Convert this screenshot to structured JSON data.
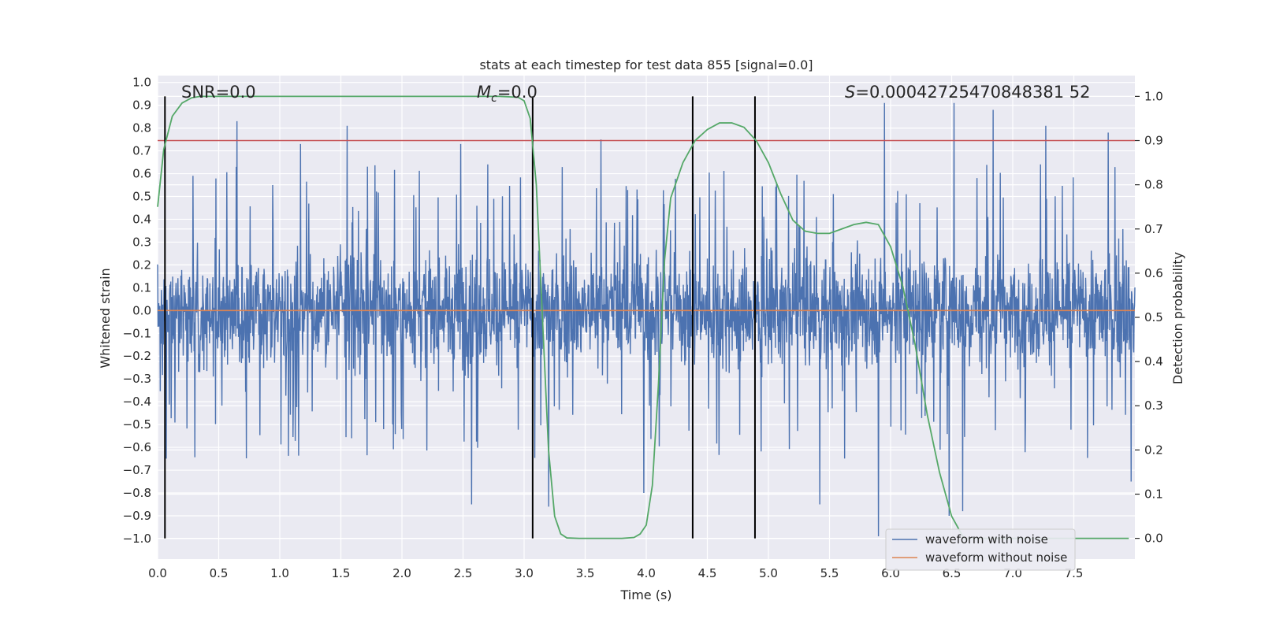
{
  "chart_data": {
    "type": "line",
    "title": "stats at each timestep for test data 855 [signal=0.0]",
    "xlabel": "Time (s)",
    "ylabel": "Whitened strain",
    "y2label": "Detection probability",
    "xlim": [
      0.0,
      8.0
    ],
    "ylim": [
      -1.09,
      1.03
    ],
    "y2lim": [
      -0.047,
      1.047
    ],
    "xticks": [
      0.0,
      0.5,
      1.0,
      1.5,
      2.0,
      2.5,
      3.0,
      3.5,
      4.0,
      4.5,
      5.0,
      5.5,
      6.0,
      6.5,
      7.0,
      7.5
    ],
    "xtick_labels": [
      "0.0",
      "0.5",
      "1.0",
      "1.5",
      "2.0",
      "2.5",
      "3.0",
      "3.5",
      "4.0",
      "4.5",
      "5.0",
      "5.5",
      "6.0",
      "6.5",
      "7.0",
      "7.5"
    ],
    "yticks": [
      1.0,
      0.9,
      0.8,
      0.7,
      0.6,
      0.5,
      0.4,
      0.3,
      0.2,
      0.1,
      0.0,
      -0.1,
      -0.2,
      -0.3,
      -0.4,
      -0.5,
      -0.6,
      -0.7,
      -0.8,
      -0.9,
      -1.0
    ],
    "ytick_labels": [
      "1.0",
      "0.9",
      "0.8",
      "0.7",
      "0.6",
      "0.5",
      "0.4",
      "0.3",
      "0.2",
      "0.1",
      "0.0",
      "−0.1",
      "−0.2",
      "−0.3",
      "−0.4",
      "−0.5",
      "−0.6",
      "−0.7",
      "−0.8",
      "−0.9",
      "−1.0"
    ],
    "y2ticks": [
      1.0,
      0.9,
      0.8,
      0.7,
      0.6,
      0.5,
      0.4,
      0.3,
      0.2,
      0.1,
      0.0
    ],
    "y2tick_labels": [
      "1.0",
      "0.9",
      "0.8",
      "0.7",
      "0.6",
      "0.5",
      "0.4",
      "0.3",
      "0.2",
      "0.1",
      "0.0"
    ],
    "grid": true,
    "annotations": {
      "snr": "SNR=0.0",
      "mc_sym": "M",
      "mc_sub": "c",
      "mc_val": "=0.0",
      "s_sym": "S",
      "s_val": "=0.00042725470848381 52"
    },
    "vlines_x": [
      0.06,
      3.07,
      4.38,
      4.89
    ],
    "threshold_probability": 0.9,
    "noise": {
      "name": "waveform with noise",
      "x_range": [
        0.0,
        8.0
      ],
      "description_envelope_typical": [
        -0.38,
        0.38
      ],
      "extremes": [
        {
          "x": 0.65,
          "y": 0.83
        },
        {
          "x": 1.55,
          "y": 0.81
        },
        {
          "x": 1.17,
          "y": 0.73
        },
        {
          "x": 2.48,
          "y": 0.73
        },
        {
          "x": 3.63,
          "y": 0.75
        },
        {
          "x": 5.95,
          "y": 0.91
        },
        {
          "x": 6.52,
          "y": 0.91
        },
        {
          "x": 6.84,
          "y": 0.88
        },
        {
          "x": 7.27,
          "y": 0.81
        },
        {
          "x": 7.78,
          "y": 0.78
        },
        {
          "x": 2.57,
          "y": -0.85
        },
        {
          "x": 3.2,
          "y": -0.86
        },
        {
          "x": 3.98,
          "y": -0.8
        },
        {
          "x": 5.42,
          "y": -0.85
        },
        {
          "x": 5.9,
          "y": -0.99
        },
        {
          "x": 6.48,
          "y": -0.9
        },
        {
          "x": 6.59,
          "y": -0.88
        },
        {
          "x": 7.97,
          "y": -0.75
        }
      ]
    },
    "clean": {
      "name": "waveform without noise",
      "value": 0.0
    },
    "probability": {
      "name": "detection probability",
      "x": [
        0.0,
        0.05,
        0.12,
        0.2,
        0.28,
        0.35,
        0.5,
        1.0,
        2.0,
        2.8,
        2.95,
        3.0,
        3.05,
        3.1,
        3.15,
        3.2,
        3.25,
        3.3,
        3.35,
        3.45,
        3.6,
        3.8,
        3.9,
        3.95,
        4.0,
        4.05,
        4.1,
        4.15,
        4.2,
        4.3,
        4.4,
        4.5,
        4.6,
        4.7,
        4.8,
        4.9,
        5.0,
        5.1,
        5.2,
        5.3,
        5.4,
        5.5,
        5.6,
        5.7,
        5.8,
        5.9,
        6.0,
        6.1,
        6.2,
        6.3,
        6.4,
        6.5,
        6.6,
        6.7,
        7.0,
        7.5,
        7.95
      ],
      "y": [
        0.75,
        0.88,
        0.955,
        0.985,
        0.997,
        1.0,
        1.0,
        1.0,
        1.0,
        1.0,
        0.998,
        0.99,
        0.95,
        0.8,
        0.5,
        0.2,
        0.05,
        0.01,
        0.001,
        0.0,
        0.0,
        0.0,
        0.002,
        0.01,
        0.03,
        0.12,
        0.35,
        0.63,
        0.77,
        0.85,
        0.9,
        0.925,
        0.94,
        0.94,
        0.93,
        0.9,
        0.85,
        0.78,
        0.72,
        0.695,
        0.69,
        0.69,
        0.7,
        0.71,
        0.715,
        0.71,
        0.66,
        0.57,
        0.44,
        0.28,
        0.15,
        0.05,
        0.0,
        0.0,
        0.0,
        0.0,
        0.0
      ]
    },
    "legend": {
      "placement": "lower-right",
      "items": [
        "waveform with noise",
        "waveform without noise"
      ]
    },
    "colors": {
      "noise": "#4c72b0",
      "clean": "#dd8452",
      "probability": "#55a868",
      "threshold": "#c44e52",
      "vline": "#000000",
      "axes_bg": "#eaeaf2",
      "grid": "#ffffff"
    }
  }
}
